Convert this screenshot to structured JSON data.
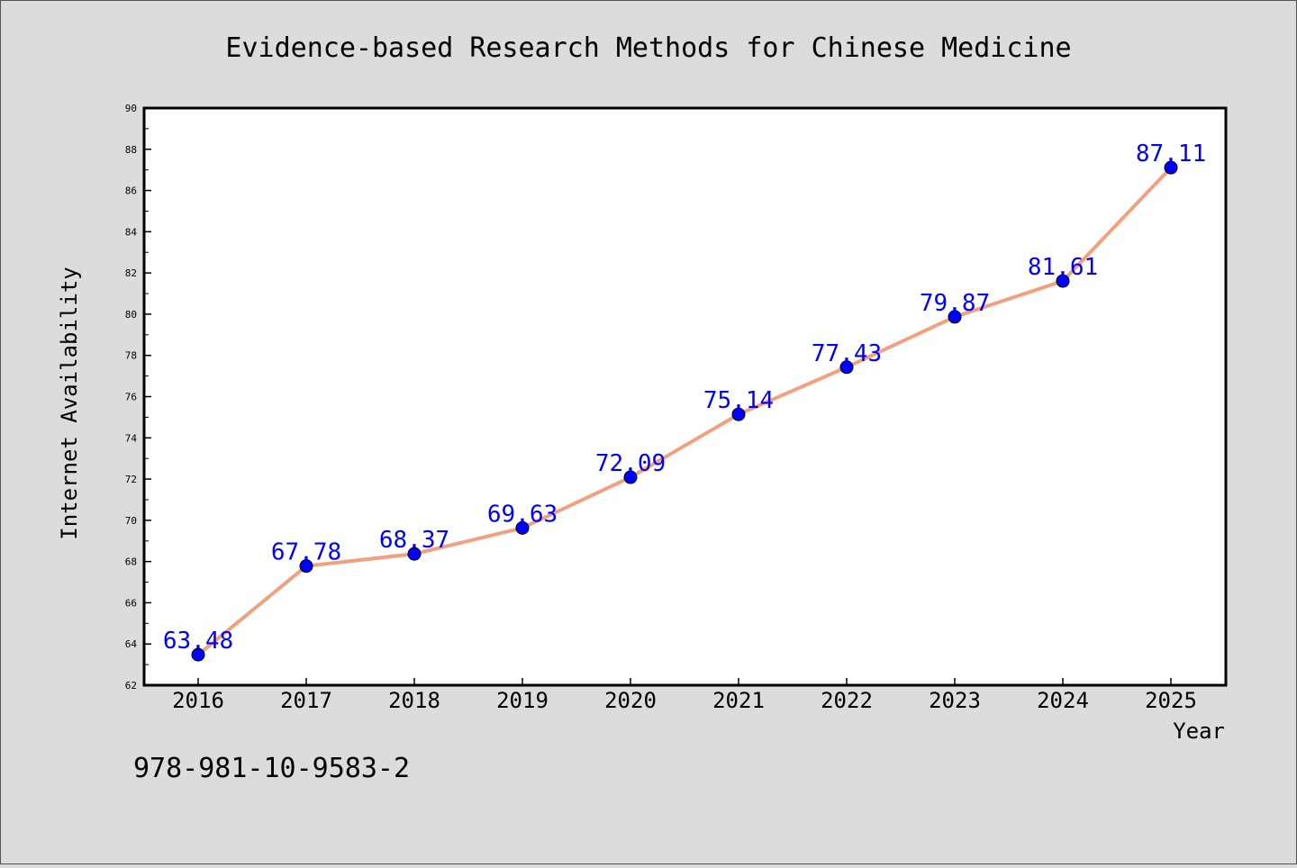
{
  "chart_data": {
    "type": "line",
    "title": "Evidence-based Research Methods for Chinese Medicine",
    "xlabel": "Year",
    "ylabel": "Internet Availability",
    "x": [
      "2016",
      "2017",
      "2018",
      "2019",
      "2020",
      "2021",
      "2022",
      "2023",
      "2024",
      "2025"
    ],
    "series": [
      {
        "values": [
          63.48,
          67.78,
          68.37,
          69.63,
          72.09,
          75.14,
          77.43,
          79.87,
          81.61,
          87.11
        ],
        "labels": [
          "63.48",
          "67.78",
          "68.37",
          "69.63",
          "72.09",
          "75.14",
          "77.43",
          "79.87",
          "81.61",
          "87.11"
        ]
      }
    ],
    "ylim": [
      62,
      90
    ],
    "yticks": [
      "62",
      "64",
      "66",
      "68",
      "70",
      "72",
      "74",
      "76",
      "78",
      "80",
      "82",
      "84",
      "86",
      "88",
      "90"
    ],
    "grid": false,
    "colors": {
      "line": "#f4a07f",
      "marker": "#0000ff",
      "label": "#0000ff",
      "axis": "#000000",
      "background": "#dcdcdc",
      "plot_background": "#ffffff"
    }
  },
  "annotation": "978-981-10-9583-2"
}
